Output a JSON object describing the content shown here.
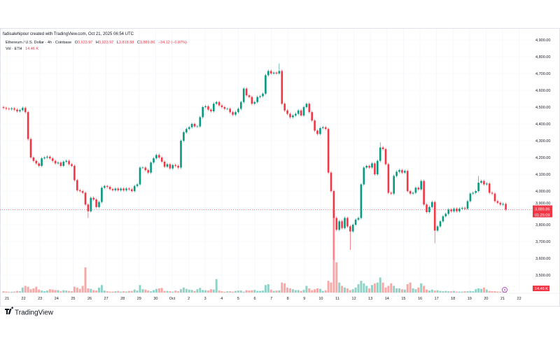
{
  "credit": "fadisalehipour created with TradingView.com, Oct 21, 2025 06:54 UTC",
  "legend": {
    "symbol": "Ethereum / U.S. Dollar · 4h · Coinbase",
    "o_label": "O",
    "o": "3,923.97",
    "h_label": "H",
    "h": "3,923.97",
    "l_label": "L",
    "l": "3,818.88",
    "c_label": "C",
    "c": "3,889.86",
    "change": "−34.12 (−0.87%)",
    "vol_label": "Vol · ETH",
    "vol": "14.46 K"
  },
  "price_badge": {
    "price": "3,889.86",
    "countdown": "01:25:09"
  },
  "vol_badge": "14.46 K",
  "logo_text": "TradingView",
  "colors": {
    "up": "#089981",
    "down": "#f23645",
    "up_vol": "#92d2c6",
    "down_vol": "#f7a9a7",
    "grid": "#f0f3fa",
    "text": "#131722"
  },
  "chart_data": {
    "type": "candlestick",
    "title": "Ethereum / U.S. Dollar · 4h · Coinbase",
    "interval": "4h",
    "ylim": [
      3500,
      4900
    ],
    "y_ticks": [
      "4,900.00",
      "4,800.00",
      "4,700.00",
      "4,600.00",
      "4,500.00",
      "4,400.00",
      "4,300.00",
      "4,200.00",
      "4,100.00",
      "4,000.00",
      "3,900.00",
      "3,800.00",
      "3,700.00",
      "3,600.00",
      "3,500.00"
    ],
    "y_tick_values": [
      4900,
      4800,
      4700,
      4600,
      4500,
      4400,
      4300,
      4200,
      4100,
      4000,
      3900,
      3800,
      3700,
      3600,
      3500
    ],
    "x_ticks": [
      "21",
      "22",
      "23",
      "24",
      "25",
      "26",
      "27",
      "28",
      "29",
      "30",
      "Oct",
      "2",
      "3",
      "4",
      "5",
      "6",
      "7",
      "8",
      "9",
      "10",
      "11",
      "12",
      "13",
      "14",
      "15",
      "16",
      "17",
      "18",
      "19",
      "20",
      "21",
      "22"
    ],
    "first_open": 4500,
    "close": [
      4495,
      4490,
      4488,
      4492,
      4485,
      4475,
      4482,
      4495,
      4470,
      4310,
      4200,
      4180,
      4165,
      4150,
      4195,
      4200,
      4205,
      4195,
      4180,
      4165,
      4170,
      4150,
      4175,
      4180,
      4160,
      4150,
      4065,
      4005,
      4000,
      3990,
      3920,
      3880,
      3960,
      3950,
      3905,
      3935,
      4020,
      4030,
      4025,
      4012,
      4005,
      4015,
      4005,
      4015,
      4005,
      4015,
      4010,
      4000,
      4030,
      4040,
      4140,
      4140,
      4125,
      4110,
      4170,
      4195,
      4215,
      4200,
      4175,
      4145,
      4160,
      4135,
      4155,
      4150,
      4140,
      4300,
      4350,
      4370,
      4380,
      4400,
      4385,
      4385,
      4440,
      4500,
      4505,
      4485,
      4475,
      4520,
      4530,
      4510,
      4500,
      4490,
      4490,
      4470,
      4455,
      4470,
      4490,
      4530,
      4610,
      4570,
      4560,
      4520,
      4530,
      4560,
      4565,
      4580,
      4690,
      4715,
      4700,
      4705,
      4700,
      4715,
      4520,
      4480,
      4460,
      4440,
      4450,
      4460,
      4480,
      4450,
      4500,
      4520,
      4470,
      4420,
      4360,
      4340,
      4375,
      4380,
      4370,
      4110,
      4000,
      3840,
      3770,
      3820,
      3780,
      3840,
      3790,
      3760,
      3800,
      3830,
      3840,
      4040,
      4140,
      4150,
      4140,
      4165,
      4100,
      4180,
      4260,
      4250,
      4160,
      3990,
      3985,
      4090,
      4115,
      4125,
      4110,
      4120,
      4000,
      3985,
      3990,
      4020,
      4010,
      4060,
      3920,
      3875,
      3905,
      3935,
      3765,
      3790,
      3820,
      3850,
      3865,
      3890,
      3880,
      3895,
      3880,
      3895,
      3900,
      3895,
      3940,
      3985,
      3990,
      4000,
      4050,
      4060,
      4040,
      4045,
      3990,
      3985,
      3940,
      3930,
      3920,
      3923.97,
      3889.86
    ],
    "notable_lows": {
      "9": 4300,
      "31": 3840,
      "121": 3590,
      "127": 3650,
      "158": 3690
    },
    "notable_highs": {
      "101": 4760,
      "138": 4290,
      "174": 4090
    },
    "volume_k": [
      8,
      6,
      5,
      5,
      6,
      10,
      8,
      30,
      40,
      35,
      20,
      25,
      35,
      18,
      12,
      8,
      12,
      20,
      18,
      15,
      15,
      8,
      14,
      12,
      10,
      8,
      35,
      30,
      22,
      40,
      150,
      25,
      22,
      15,
      12,
      30,
      45,
      12,
      8,
      6,
      6,
      8,
      10,
      6,
      8,
      6,
      10,
      10,
      18,
      12,
      45,
      20,
      18,
      12,
      8,
      15,
      22,
      25,
      28,
      10,
      10,
      8,
      6,
      12,
      8,
      20,
      30,
      22,
      18,
      16,
      10,
      20,
      28,
      16,
      14,
      12,
      20,
      18,
      80,
      12,
      8,
      5,
      8,
      8,
      6,
      10,
      12,
      12,
      6,
      14,
      12,
      14,
      16,
      10,
      10,
      12,
      45,
      50,
      18,
      10,
      12,
      14,
      60,
      55,
      30,
      25,
      20,
      15,
      15,
      10,
      16,
      40,
      25,
      14,
      20,
      25,
      22,
      10,
      14,
      70,
      60,
      500,
      180,
      60,
      40,
      30,
      25,
      15,
      20,
      30,
      50,
      70,
      55,
      40,
      25,
      45,
      55,
      60,
      90,
      60,
      30,
      40,
      55,
      40,
      25,
      25,
      20,
      18,
      50,
      60,
      25,
      20,
      30,
      55,
      40,
      18,
      12,
      18,
      12,
      14,
      10,
      8,
      10,
      8,
      8,
      10,
      6,
      6,
      6,
      8,
      8,
      10,
      8,
      20,
      25,
      22,
      30,
      18,
      10,
      8,
      8,
      6,
      6,
      5,
      14
    ],
    "last_price": 3889.86
  }
}
